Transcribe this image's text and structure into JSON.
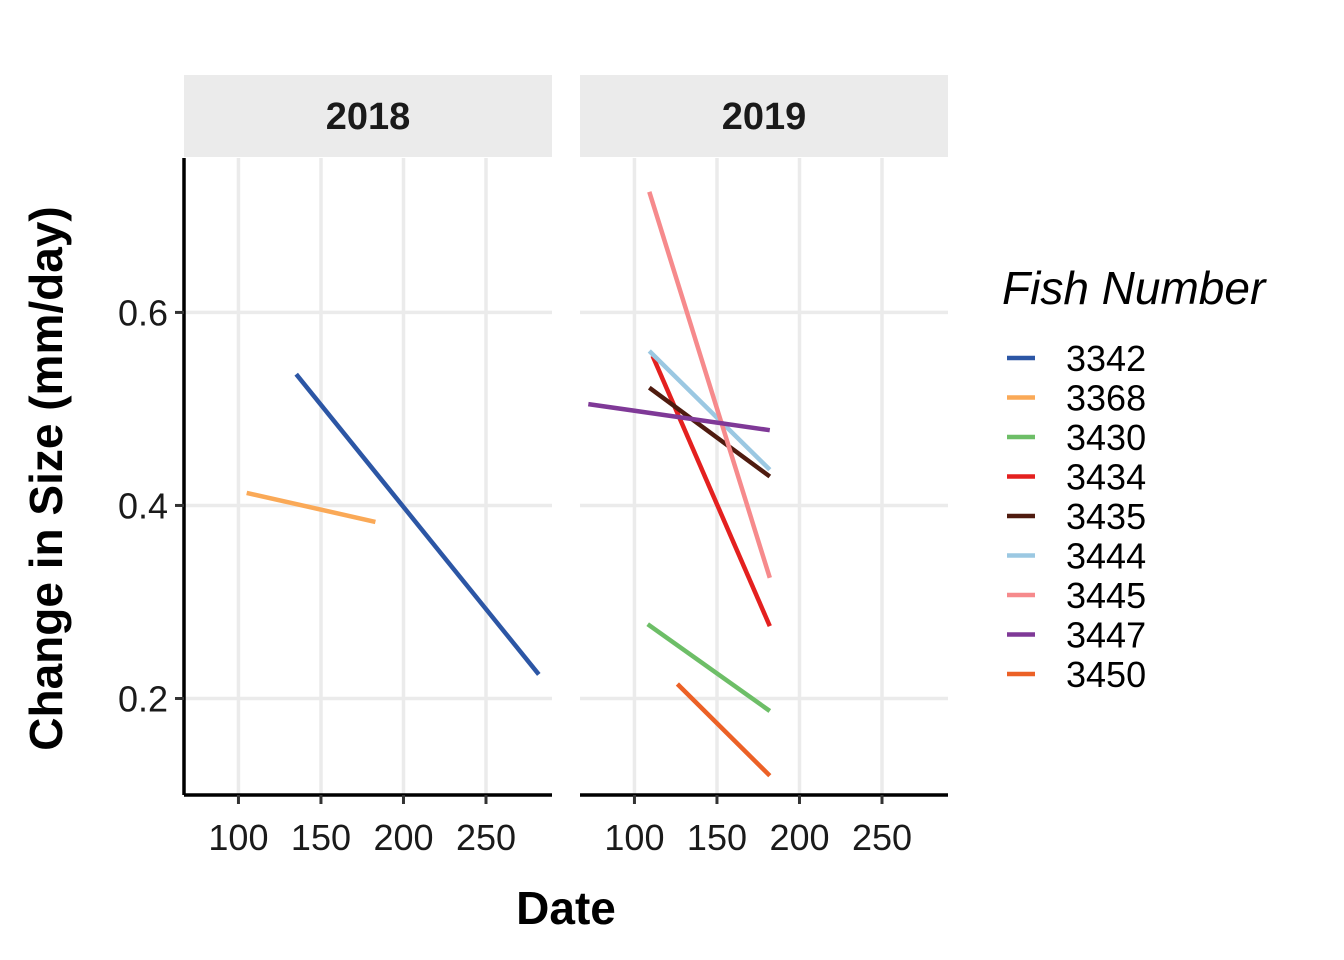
{
  "chart_data": {
    "type": "line",
    "facet_by": "year",
    "facets": [
      {
        "label": "2018",
        "lines": [
          {
            "fish": "3342",
            "x": [
              135,
              282
            ],
            "y": [
              0.536,
              0.225
            ]
          },
          {
            "fish": "3368",
            "x": [
              105,
              183
            ],
            "y": [
              0.413,
              0.383
            ]
          }
        ]
      },
      {
        "label": "2019",
        "lines": [
          {
            "fish": "3430",
            "x": [
              108,
              182
            ],
            "y": [
              0.277,
              0.187
            ]
          },
          {
            "fish": "3434",
            "x": [
              111,
              182
            ],
            "y": [
              0.555,
              0.275
            ]
          },
          {
            "fish": "3435",
            "x": [
              109,
              182
            ],
            "y": [
              0.522,
              0.43
            ]
          },
          {
            "fish": "3444",
            "x": [
              109,
              182
            ],
            "y": [
              0.56,
              0.437
            ]
          },
          {
            "fish": "3445",
            "x": [
              109,
              182
            ],
            "y": [
              0.725,
              0.325
            ]
          },
          {
            "fish": "3447",
            "x": [
              72,
              182
            ],
            "y": [
              0.505,
              0.478
            ]
          },
          {
            "fish": "3450",
            "x": [
              126,
              182
            ],
            "y": [
              0.215,
              0.12
            ]
          }
        ]
      }
    ],
    "xlabel": "Date",
    "ylabel": "Change in Size (mm/day)",
    "xlim": [
      67,
      290
    ],
    "ylim": [
      0.1,
      0.76
    ],
    "x_ticks": [
      100,
      150,
      200,
      250
    ],
    "y_ticks": [
      0.2,
      0.4,
      0.6
    ],
    "y_tick_labels": [
      "0.2",
      "0.4",
      "0.6"
    ],
    "grid": true,
    "legend": {
      "title": "Fish Number",
      "position": "right",
      "entries": [
        {
          "label": "3342",
          "color": "#2c56a5"
        },
        {
          "label": "3368",
          "color": "#faa957"
        },
        {
          "label": "3430",
          "color": "#6dbe67"
        },
        {
          "label": "3434",
          "color": "#e4201f"
        },
        {
          "label": "3435",
          "color": "#4f1b0f"
        },
        {
          "label": "3444",
          "color": "#9bc8e2"
        },
        {
          "label": "3445",
          "color": "#f68a8c"
        },
        {
          "label": "3447",
          "color": "#7f3997"
        },
        {
          "label": "3450",
          "color": "#ec6126"
        }
      ]
    }
  }
}
